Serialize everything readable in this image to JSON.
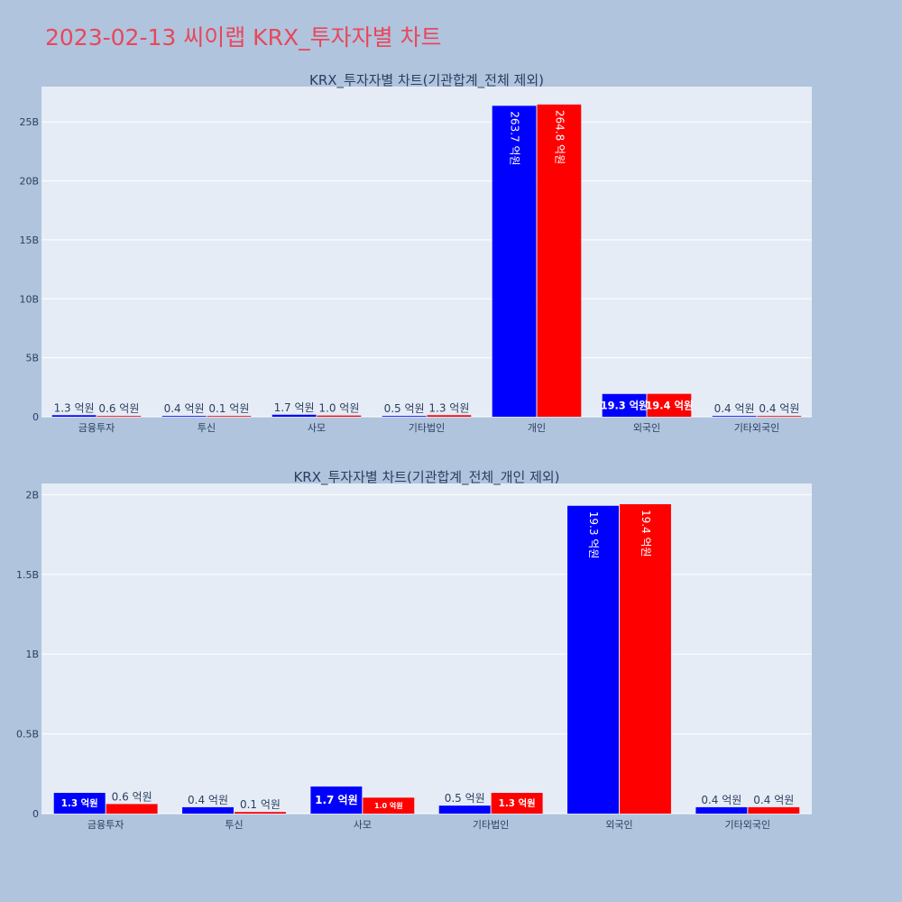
{
  "page_title": "2023-02-13 씨이랩 KRX_투자자별 차트",
  "colors": {
    "series_a": "#0000ff",
    "series_b": "#ff0000",
    "title": "#e8475a"
  },
  "chart_data": [
    {
      "type": "bar",
      "title": "KRX_투자자별 차트(기관합계_전체 제외)",
      "categories": [
        "금융투자",
        "투신",
        "사모",
        "기타법인",
        "개인",
        "외국인",
        "기타외국인"
      ],
      "ylim": [
        0,
        28000000000
      ],
      "yticks": [
        0,
        5000000000,
        10000000000,
        15000000000,
        20000000000,
        25000000000
      ],
      "ytick_labels": [
        "0",
        "5B",
        "10B",
        "15B",
        "20B",
        "25B"
      ],
      "grid": true,
      "series": [
        {
          "color": "#0000ff",
          "values": [
            130000000,
            40000000,
            170000000,
            50000000,
            26370000000,
            1930000000,
            40000000
          ],
          "labels": [
            "1.3 억원",
            "0.4 억원",
            "1.7 억원",
            "0.5 억원",
            "263.7 억원",
            "19.3 억원",
            "0.4 억원"
          ]
        },
        {
          "color": "#ff0000",
          "values": [
            60000000,
            10000000,
            100000000,
            130000000,
            26480000000,
            1940000000,
            40000000
          ],
          "labels": [
            "0.6 억원",
            "0.1 억원",
            "1.0 억원",
            "1.3 억원",
            "264.8 억원",
            "19.4 억원",
            "0.4 억원"
          ]
        }
      ]
    },
    {
      "type": "bar",
      "title": "KRX_투자자별 차트(기관합계_전체_개인 제외)",
      "categories": [
        "금융투자",
        "투신",
        "사모",
        "기타법인",
        "외국인",
        "기타외국인"
      ],
      "ylim": [
        0,
        2070000000
      ],
      "yticks": [
        0,
        500000000,
        1000000000,
        1500000000,
        2000000000
      ],
      "ytick_labels": [
        "0",
        "0.5B",
        "1B",
        "1.5B",
        "2B"
      ],
      "grid": true,
      "series": [
        {
          "color": "#0000ff",
          "values": [
            130000000,
            40000000,
            170000000,
            50000000,
            1930000000,
            40000000
          ],
          "labels": [
            "1.3 억원",
            "0.4 억원",
            "1.7 억원",
            "0.5 억원",
            "19.3 억원",
            "0.4 억원"
          ]
        },
        {
          "color": "#ff0000",
          "values": [
            60000000,
            10000000,
            100000000,
            130000000,
            1940000000,
            40000000
          ],
          "labels": [
            "0.6 억원",
            "0.1 억원",
            "1.0 억원",
            "1.3 억원",
            "19.4 억원",
            "0.4 억원"
          ]
        }
      ]
    }
  ]
}
